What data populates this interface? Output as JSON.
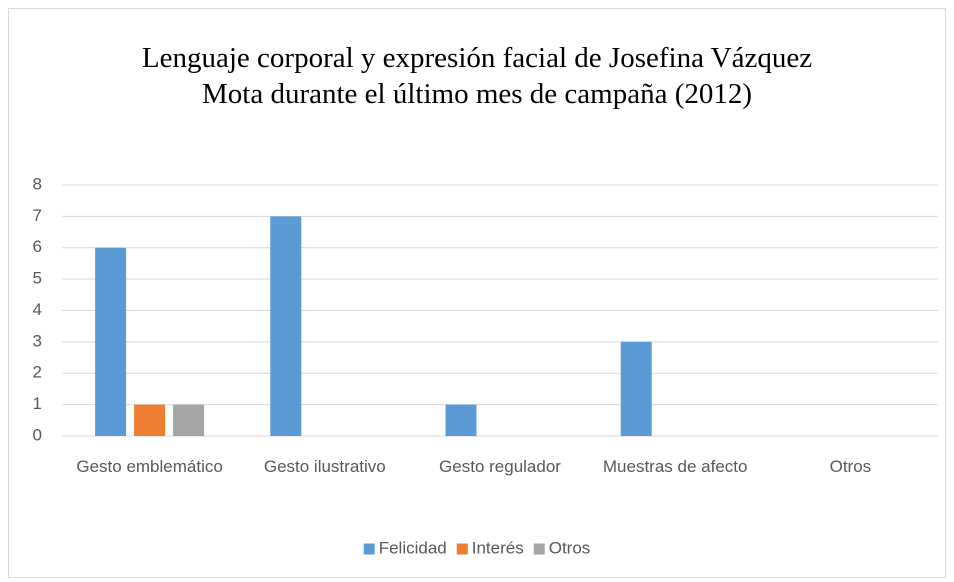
{
  "chart_data": {
    "type": "bar",
    "title": "Lenguaje corporal y expresión facial de Josefina Vázquez Mota durante el último mes de campaña (2012)",
    "categories": [
      "Gesto emblemático",
      "Gesto ilustrativo",
      "Gesto regulador",
      "Muestras de afecto",
      "Otros"
    ],
    "series": [
      {
        "name": "Felicidad",
        "color": "#5b9bd5",
        "values": [
          6,
          7,
          1,
          3,
          0
        ]
      },
      {
        "name": "Interés",
        "color": "#ed7d31",
        "values": [
          1,
          0,
          0,
          0,
          0
        ]
      },
      {
        "name": "Otros",
        "color": "#a5a5a5",
        "values": [
          1,
          0,
          0,
          0,
          0
        ]
      }
    ],
    "ylim": [
      0,
      8
    ],
    "yticks": [
      0,
      1,
      2,
      3,
      4,
      5,
      6,
      7,
      8
    ],
    "grid": true,
    "legend": "bottom"
  }
}
